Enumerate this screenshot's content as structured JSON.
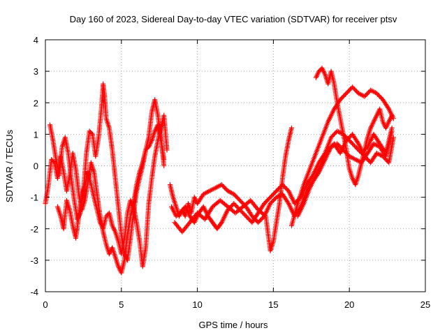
{
  "chart_data": {
    "type": "scatter",
    "title": "Day 160 of 2023, Sidereal Day-to-day VTEC variation (SDTVAR) for receiver ptsv",
    "xlabel": "GPS time / hours",
    "ylabel": "SDTVAR / TECUs",
    "xlim": [
      0,
      25
    ],
    "ylim": [
      -4,
      4
    ],
    "xticks": [
      0,
      5,
      10,
      15,
      20,
      25
    ],
    "yticks": [
      -4,
      -3,
      -2,
      -1,
      0,
      1,
      2,
      3,
      4
    ],
    "grid": true,
    "marker": "+",
    "color": "#ff0000",
    "series": [
      {
        "values": [
          [
            0.0,
            -1.2
          ],
          [
            0.2,
            -0.6
          ],
          [
            0.4,
            0.2
          ],
          [
            0.6,
            0.1
          ],
          [
            0.8,
            -0.4
          ],
          [
            1.0,
            0.3
          ],
          [
            1.2,
            -0.2
          ],
          [
            1.4,
            -0.8
          ],
          [
            1.6,
            -0.3
          ],
          [
            1.8,
            0.4
          ],
          [
            2.0,
            -0.1
          ],
          [
            2.2,
            -0.9
          ],
          [
            2.4,
            -1.4
          ],
          [
            2.6,
            -1.1
          ],
          [
            2.8,
            -0.5
          ],
          [
            3.0,
            0.1
          ],
          [
            3.2,
            -0.2
          ],
          [
            3.4,
            -0.9
          ],
          [
            3.6,
            -1.6
          ],
          [
            3.8,
            -2.1
          ],
          [
            4.0,
            -2.5
          ],
          [
            4.2,
            -2.8
          ],
          [
            4.4,
            -2.6
          ],
          [
            4.6,
            -2.9
          ],
          [
            4.8,
            -3.2
          ],
          [
            5.0,
            -3.4
          ],
          [
            5.2,
            -3.0
          ],
          [
            5.4,
            -2.2
          ],
          [
            5.6,
            -1.6
          ],
          [
            5.8,
            -1.2
          ],
          [
            6.0,
            -0.6
          ],
          [
            6.2,
            -0.2
          ],
          [
            6.4,
            0.1
          ],
          [
            6.6,
            0.5
          ],
          [
            6.8,
            0.6
          ],
          [
            7.0,
            0.8
          ],
          [
            7.2,
            1.1
          ],
          [
            7.4,
            1.3
          ],
          [
            7.6,
            0.8
          ],
          [
            7.8,
            0.2
          ]
        ]
      },
      {
        "values": [
          [
            0.3,
            1.3
          ],
          [
            0.5,
            0.8
          ],
          [
            0.7,
            0.2
          ],
          [
            0.9,
            -0.3
          ],
          [
            1.1,
            0.6
          ],
          [
            1.3,
            0.9
          ],
          [
            1.5,
            0.4
          ],
          [
            1.7,
            -0.4
          ],
          [
            1.9,
            -1.1
          ],
          [
            2.1,
            -1.7
          ],
          [
            2.3,
            -1.5
          ],
          [
            2.5,
            -0.8
          ],
          [
            2.7,
            0.4
          ],
          [
            2.9,
            1.1
          ],
          [
            3.1,
            1.0
          ],
          [
            3.3,
            0.3
          ],
          [
            3.5,
            0.9
          ],
          [
            3.7,
            1.9
          ],
          [
            3.8,
            2.6
          ],
          [
            3.9,
            2.2
          ],
          [
            4.0,
            1.5
          ],
          [
            4.2,
            1.2
          ],
          [
            4.4,
            0.5
          ],
          [
            4.6,
            -0.4
          ],
          [
            4.8,
            -1.3
          ],
          [
            5.0,
            -2.2
          ],
          [
            5.2,
            -2.8
          ],
          [
            5.4,
            -3.0
          ],
          [
            5.6,
            -2.3
          ],
          [
            5.8,
            -1.5
          ],
          [
            6.0,
            -0.8
          ],
          [
            6.2,
            -0.4
          ],
          [
            6.4,
            0.0
          ],
          [
            6.6,
            0.5
          ],
          [
            6.8,
            0.9
          ],
          [
            7.0,
            1.7
          ],
          [
            7.2,
            2.1
          ],
          [
            7.4,
            1.6
          ],
          [
            7.6,
            0.9
          ],
          [
            7.8,
            0.0
          ]
        ]
      },
      {
        "values": [
          [
            0.8,
            -1.3
          ],
          [
            1.0,
            -1.6
          ],
          [
            1.2,
            -2.0
          ],
          [
            1.4,
            -1.1
          ],
          [
            1.6,
            -1.4
          ],
          [
            1.8,
            -1.9
          ],
          [
            2.0,
            -2.3
          ],
          [
            2.2,
            -1.6
          ],
          [
            2.4,
            -1.0
          ],
          [
            2.6,
            -0.6
          ],
          [
            2.8,
            -0.2
          ],
          [
            3.0,
            -0.6
          ],
          [
            3.2,
            -1.0
          ],
          [
            3.4,
            -1.4
          ],
          [
            3.6,
            -1.8
          ],
          [
            3.8,
            -2.0
          ],
          [
            4.0,
            -1.6
          ],
          [
            4.2,
            -1.5
          ],
          [
            4.4,
            -1.9
          ],
          [
            4.6,
            -2.1
          ],
          [
            4.8,
            -2.4
          ],
          [
            5.0,
            -2.8
          ],
          [
            5.2,
            -2.3
          ],
          [
            5.4,
            -1.5
          ],
          [
            5.6,
            -1.1
          ],
          [
            5.8,
            -1.3
          ],
          [
            6.0,
            -1.8
          ],
          [
            6.2,
            -2.4
          ],
          [
            6.4,
            -3.2
          ],
          [
            6.6,
            -2.6
          ],
          [
            6.8,
            -1.2
          ],
          [
            7.0,
            -0.4
          ],
          [
            7.2,
            0.3
          ],
          [
            7.4,
            0.8
          ],
          [
            7.6,
            1.2
          ],
          [
            7.8,
            1.6
          ],
          [
            8.0,
            0.5
          ]
        ]
      },
      {
        "values": [
          [
            8.2,
            -0.6
          ],
          [
            8.4,
            -1.0
          ],
          [
            8.6,
            -1.3
          ],
          [
            8.8,
            -1.6
          ],
          [
            9.0,
            -1.4
          ],
          [
            9.2,
            -1.6
          ],
          [
            9.4,
            -1.2
          ],
          [
            9.6,
            -1.5
          ],
          [
            9.8,
            -1.0
          ],
          [
            10.0,
            -1.2
          ],
          [
            10.4,
            -0.9
          ],
          [
            10.8,
            -0.8
          ],
          [
            11.2,
            -0.7
          ],
          [
            11.6,
            -0.6
          ],
          [
            12.0,
            -0.8
          ],
          [
            12.4,
            -0.9
          ],
          [
            12.8,
            -1.1
          ],
          [
            13.2,
            -1.3
          ],
          [
            13.6,
            -1.6
          ],
          [
            14.0,
            -1.8
          ],
          [
            14.4,
            -1.6
          ],
          [
            14.8,
            -1.2
          ],
          [
            15.2,
            -1.0
          ],
          [
            15.6,
            -0.9
          ],
          [
            16.0,
            -1.2
          ],
          [
            16.4,
            -1.6
          ],
          [
            16.8,
            -1.3
          ],
          [
            17.2,
            -0.8
          ],
          [
            17.6,
            -0.5
          ],
          [
            18.0,
            -0.2
          ],
          [
            18.4,
            0.2
          ],
          [
            18.8,
            0.6
          ],
          [
            19.2,
            0.7
          ],
          [
            19.6,
            0.5
          ],
          [
            20.0,
            0.3
          ],
          [
            20.4,
            0.2
          ],
          [
            20.8,
            0.1
          ],
          [
            21.2,
            0.4
          ],
          [
            21.6,
            0.7
          ],
          [
            22.0,
            0.6
          ],
          [
            22.4,
            0.3
          ],
          [
            22.8,
            1.1
          ]
        ]
      },
      {
        "values": [
          [
            8.3,
            -1.3
          ],
          [
            8.6,
            -1.6
          ],
          [
            8.9,
            -1.5
          ],
          [
            9.2,
            -1.3
          ],
          [
            9.5,
            -1.6
          ],
          [
            9.8,
            -1.8
          ],
          [
            10.1,
            -1.5
          ],
          [
            10.4,
            -1.3
          ],
          [
            10.7,
            -1.6
          ],
          [
            11.0,
            -1.8
          ],
          [
            11.3,
            -2.0
          ],
          [
            11.6,
            -1.8
          ],
          [
            12.0,
            -1.4
          ],
          [
            12.4,
            -1.2
          ],
          [
            12.8,
            -1.4
          ],
          [
            13.2,
            -1.6
          ],
          [
            13.6,
            -1.8
          ],
          [
            14.0,
            -1.5
          ],
          [
            14.4,
            -1.2
          ],
          [
            14.8,
            -1.0
          ],
          [
            15.2,
            -0.8
          ],
          [
            15.6,
            -0.6
          ],
          [
            16.0,
            -0.8
          ],
          [
            16.4,
            -1.2
          ],
          [
            16.8,
            -1.0
          ],
          [
            17.2,
            -0.6
          ],
          [
            17.6,
            -0.3
          ],
          [
            18.0,
            0.1
          ],
          [
            18.4,
            0.4
          ],
          [
            18.8,
            0.9
          ],
          [
            19.2,
            1.1
          ],
          [
            19.6,
            1.0
          ],
          [
            20.0,
            0.8
          ],
          [
            20.4,
            0.6
          ],
          [
            20.8,
            0.4
          ],
          [
            21.2,
            0.6
          ],
          [
            21.6,
            1.0
          ],
          [
            22.0,
            0.7
          ],
          [
            22.4,
            0.4
          ],
          [
            22.8,
            1.2
          ]
        ]
      },
      {
        "values": [
          [
            8.5,
            -1.8
          ],
          [
            9.0,
            -2.1
          ],
          [
            9.5,
            -1.8
          ],
          [
            10.0,
            -1.5
          ],
          [
            10.5,
            -1.7
          ],
          [
            11.0,
            -1.3
          ],
          [
            11.5,
            -1.1
          ],
          [
            12.0,
            -1.3
          ],
          [
            12.5,
            -1.5
          ],
          [
            13.0,
            -1.3
          ],
          [
            13.5,
            -1.1
          ],
          [
            14.0,
            -1.4
          ],
          [
            14.5,
            -1.6
          ],
          [
            14.8,
            -2.7
          ],
          [
            15.0,
            -2.4
          ],
          [
            15.2,
            -1.8
          ],
          [
            15.4,
            -1.2
          ],
          [
            15.6,
            -0.4
          ],
          [
            15.8,
            0.3
          ],
          [
            16.0,
            0.8
          ],
          [
            16.2,
            1.2
          ]
        ]
      },
      {
        "values": [
          [
            16.2,
            -1.9
          ],
          [
            16.6,
            -1.2
          ],
          [
            17.0,
            -0.6
          ],
          [
            17.4,
            -0.1
          ],
          [
            17.8,
            0.4
          ],
          [
            18.2,
            0.9
          ],
          [
            18.6,
            1.4
          ],
          [
            19.0,
            1.8
          ],
          [
            19.4,
            2.1
          ],
          [
            19.8,
            2.3
          ],
          [
            20.2,
            2.5
          ],
          [
            20.6,
            2.3
          ],
          [
            21.0,
            2.2
          ],
          [
            21.4,
            2.4
          ],
          [
            21.8,
            2.3
          ],
          [
            22.2,
            2.1
          ],
          [
            22.6,
            1.8
          ],
          [
            22.9,
            1.5
          ]
        ]
      },
      {
        "values": [
          [
            17.8,
            2.8
          ],
          [
            18.0,
            3.0
          ],
          [
            18.2,
            3.1
          ],
          [
            18.4,
            2.9
          ],
          [
            18.6,
            2.6
          ],
          [
            18.8,
            3.0
          ],
          [
            19.0,
            2.6
          ],
          [
            19.2,
            2.0
          ],
          [
            19.4,
            1.5
          ],
          [
            19.6,
            1.0
          ],
          [
            19.8,
            0.5
          ],
          [
            20.0,
            -0.1
          ],
          [
            20.2,
            -0.4
          ],
          [
            20.4,
            -0.6
          ],
          [
            20.6,
            -0.3
          ],
          [
            20.8,
            0.1
          ],
          [
            21.0,
            0.5
          ],
          [
            21.2,
            0.9
          ],
          [
            21.4,
            1.2
          ],
          [
            21.6,
            1.4
          ],
          [
            21.8,
            1.6
          ],
          [
            22.0,
            1.8
          ],
          [
            22.2,
            1.4
          ],
          [
            22.4,
            1.2
          ],
          [
            22.6,
            1.4
          ],
          [
            22.8,
            1.6
          ]
        ]
      },
      {
        "values": [
          [
            16.6,
            -1.6
          ],
          [
            17.0,
            -1.2
          ],
          [
            17.4,
            -0.7
          ],
          [
            17.8,
            -0.3
          ],
          [
            18.2,
            0.1
          ],
          [
            18.6,
            0.5
          ],
          [
            19.0,
            0.7
          ],
          [
            19.4,
            0.4
          ],
          [
            19.8,
            0.8
          ],
          [
            20.2,
            1.0
          ],
          [
            20.6,
            0.7
          ],
          [
            21.0,
            0.3
          ],
          [
            21.4,
            0.1
          ],
          [
            21.8,
            0.4
          ],
          [
            22.2,
            0.3
          ],
          [
            22.6,
            0.1
          ],
          [
            22.9,
            0.9
          ]
        ]
      }
    ]
  }
}
